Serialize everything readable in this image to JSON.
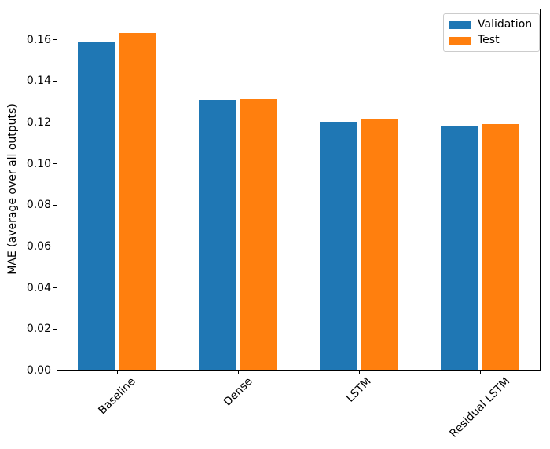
{
  "chart_data": {
    "type": "bar",
    "categories": [
      "Baseline",
      "Dense",
      "LSTM",
      "Residual LSTM"
    ],
    "series": [
      {
        "name": "Validation",
        "color": "#1f77b4",
        "values": [
          0.1589,
          0.1307,
          0.12,
          0.118
        ]
      },
      {
        "name": "Test",
        "color": "#ff7f0e",
        "values": [
          0.1633,
          0.1312,
          0.1216,
          0.1193
        ]
      }
    ],
    "title": "",
    "xlabel": "",
    "ylabel": "MAE (average over all outputs)",
    "ylim": [
      0,
      0.175
    ],
    "yticks": [
      0,
      0.02,
      0.04,
      0.06,
      0.08,
      0.1,
      0.12,
      0.14,
      0.16
    ],
    "ytick_labels": [
      "0.00",
      "0.02",
      "0.04",
      "0.06",
      "0.08",
      "0.10",
      "0.12",
      "0.14",
      "0.16"
    ],
    "xtick_rotation": 45,
    "grid": false,
    "legend_position": "upper right",
    "legend_border_color": "#cccccc",
    "spine_color": "#000000",
    "background": "#ffffff"
  }
}
